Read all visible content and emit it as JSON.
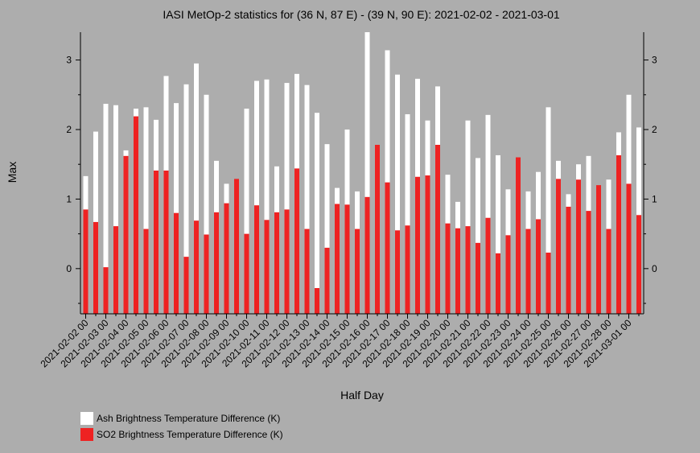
{
  "chart_data": {
    "type": "bar",
    "title": "IASI MetOp-2 statistics for (36 N, 87 E) - (39 N, 90 E): 2021-02-02 - 2021-03-01",
    "xlabel": "Half Day",
    "ylabel": "Max",
    "ylim": [
      -0.65,
      3.4
    ],
    "yticks": [
      0,
      1,
      2,
      3
    ],
    "grid": false,
    "legend_position": "bottom-left",
    "tick_labels": [
      "2021-02-02 00",
      "2021-02-03 00",
      "2021-02-04 00",
      "2021-02-05 00",
      "2021-02-06 00",
      "2021-02-07 00",
      "2021-02-08 00",
      "2021-02-09 00",
      "2021-02-10 00",
      "2021-02-11 00",
      "2021-02-12 00",
      "2021-02-13 00",
      "2021-02-14 00",
      "2021-02-15 00",
      "2021-02-16 00",
      "2021-02-17 00",
      "2021-02-18 00",
      "2021-02-19 00",
      "2021-02-20 00",
      "2021-02-21 00",
      "2021-02-22 00",
      "2021-02-23 00",
      "2021-02-24 00",
      "2021-02-25 00",
      "2021-02-26 00",
      "2021-02-27 00",
      "2021-02-28 00",
      "2021-03-01 00"
    ],
    "series": [
      {
        "name": "Ash Brightness Temperature Difference (K)",
        "color": "#ffffff",
        "values": [
          1.33,
          1.97,
          2.37,
          2.35,
          1.7,
          2.3,
          2.32,
          2.14,
          2.77,
          2.38,
          2.65,
          2.95,
          2.5,
          1.55,
          1.22,
          1.21,
          2.3,
          2.7,
          2.72,
          1.47,
          2.67,
          2.8,
          2.64,
          2.24,
          1.79,
          1.16,
          2.0,
          1.11,
          3.4,
          1.67,
          3.14,
          2.79,
          2.22,
          2.73,
          2.13,
          2.62,
          1.35,
          0.96,
          2.13,
          1.59,
          2.21,
          1.63,
          1.14,
          1.46,
          1.11,
          1.39,
          2.32,
          1.55,
          1.07,
          1.5,
          1.62,
          1.17,
          1.28,
          1.96,
          2.5,
          2.03
        ]
      },
      {
        "name": "SO2 Brightness Temperature Difference (K)",
        "color": "#ee2222",
        "values": [
          0.85,
          0.67,
          0.02,
          0.61,
          1.62,
          2.19,
          0.57,
          1.41,
          1.41,
          0.8,
          0.17,
          0.69,
          0.49,
          0.81,
          0.94,
          1.29,
          0.5,
          0.91,
          0.7,
          0.81,
          0.85,
          1.44,
          0.57,
          -0.28,
          0.3,
          0.93,
          0.92,
          0.57,
          1.03,
          1.78,
          1.24,
          0.55,
          0.62,
          1.32,
          1.34,
          1.78,
          0.65,
          0.58,
          0.61,
          0.37,
          0.73,
          0.22,
          0.48,
          1.6,
          0.57,
          0.71,
          0.23,
          1.29,
          0.89,
          1.28,
          0.83,
          1.2,
          0.57,
          1.63,
          1.22,
          0.77
        ]
      }
    ]
  }
}
